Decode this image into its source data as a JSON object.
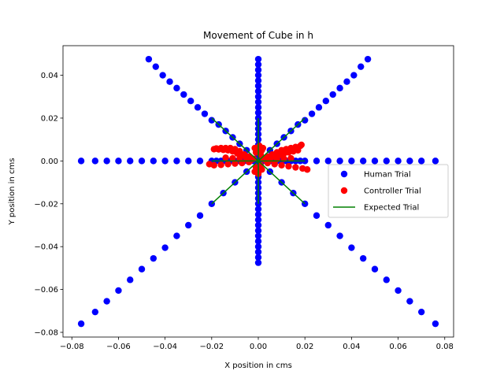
{
  "chart_data": {
    "type": "scatter",
    "title": "Movement of Cube in h",
    "xlabel": "X position in cms",
    "ylabel": "Y position in cms",
    "xlim": [
      -0.0838,
      0.0838
    ],
    "ylim": [
      -0.0822,
      0.0538
    ],
    "xticks": [
      -0.08,
      -0.06,
      -0.04,
      -0.02,
      0.0,
      0.02,
      0.04,
      0.06,
      0.08
    ],
    "xtick_labels": [
      "−0.08",
      "−0.06",
      "−0.04",
      "−0.02",
      "0.00",
      "0.02",
      "0.04",
      "0.06",
      "0.08"
    ],
    "yticks": [
      -0.08,
      -0.06,
      -0.04,
      -0.02,
      0.0,
      0.02,
      0.04
    ],
    "ytick_labels": [
      "−0.08",
      "−0.06",
      "−0.04",
      "−0.02",
      "0.00",
      "0.02",
      "0.04"
    ],
    "legend_position": "center-right",
    "colors": {
      "human": "#0000ff",
      "controller": "#ff0000",
      "expected": "#008000"
    },
    "series": [
      {
        "name": "Human Trial",
        "kind": "scatter",
        "color": "#0000ff",
        "points": [
          [
            0,
            0
          ],
          [
            0.002,
            0
          ],
          [
            0.004,
            0
          ],
          [
            0.006,
            0
          ],
          [
            0.008,
            0
          ],
          [
            0.01,
            0
          ],
          [
            0.012,
            0
          ],
          [
            0.014,
            0
          ],
          [
            0.016,
            0
          ],
          [
            0.018,
            0
          ],
          [
            0.02,
            0
          ],
          [
            0.025,
            0
          ],
          [
            0.03,
            0
          ],
          [
            0.035,
            0
          ],
          [
            0.04,
            0
          ],
          [
            0.045,
            0
          ],
          [
            0.05,
            0
          ],
          [
            0.055,
            0
          ],
          [
            0.06,
            0
          ],
          [
            0.065,
            0
          ],
          [
            0.07,
            0
          ],
          [
            0.076,
            0
          ],
          [
            -0.002,
            0
          ],
          [
            -0.004,
            0
          ],
          [
            -0.006,
            0
          ],
          [
            -0.008,
            0
          ],
          [
            -0.01,
            0
          ],
          [
            -0.012,
            0
          ],
          [
            -0.014,
            0
          ],
          [
            -0.016,
            0
          ],
          [
            -0.018,
            0
          ],
          [
            -0.02,
            0
          ],
          [
            -0.025,
            0
          ],
          [
            -0.03,
            0
          ],
          [
            -0.035,
            0
          ],
          [
            -0.04,
            0
          ],
          [
            -0.045,
            0
          ],
          [
            -0.05,
            0
          ],
          [
            -0.055,
            0
          ],
          [
            -0.06,
            0
          ],
          [
            -0.065,
            0
          ],
          [
            -0.07,
            0
          ],
          [
            -0.076,
            0
          ],
          [
            0,
            0.0025
          ],
          [
            0,
            0.005
          ],
          [
            0,
            0.0075
          ],
          [
            0,
            0.01
          ],
          [
            0,
            0.0125
          ],
          [
            0,
            0.015
          ],
          [
            0,
            0.0175
          ],
          [
            0,
            0.02
          ],
          [
            0,
            0.0225
          ],
          [
            0,
            0.025
          ],
          [
            0,
            0.0275
          ],
          [
            0,
            0.03
          ],
          [
            0,
            0.0325
          ],
          [
            0,
            0.035
          ],
          [
            0,
            0.0375
          ],
          [
            0,
            0.04
          ],
          [
            0,
            0.0425
          ],
          [
            0,
            0.045
          ],
          [
            0,
            0.0475
          ],
          [
            0,
            -0.0025
          ],
          [
            0,
            -0.005
          ],
          [
            0,
            -0.0075
          ],
          [
            0,
            -0.01
          ],
          [
            0,
            -0.0125
          ],
          [
            0,
            -0.015
          ],
          [
            0,
            -0.0175
          ],
          [
            0,
            -0.02
          ],
          [
            0,
            -0.0225
          ],
          [
            0,
            -0.025
          ],
          [
            0,
            -0.0275
          ],
          [
            0,
            -0.03
          ],
          [
            0,
            -0.0325
          ],
          [
            0,
            -0.035
          ],
          [
            0,
            -0.0375
          ],
          [
            0,
            -0.04
          ],
          [
            0,
            -0.0425
          ],
          [
            0,
            -0.045
          ],
          [
            0,
            -0.0475
          ],
          [
            0.005,
            0.005
          ],
          [
            0.008,
            0.008
          ],
          [
            0.011,
            0.011
          ],
          [
            0.014,
            0.014
          ],
          [
            0.017,
            0.017
          ],
          [
            0.02,
            0.019
          ],
          [
            0.023,
            0.022
          ],
          [
            0.026,
            0.025
          ],
          [
            0.029,
            0.028
          ],
          [
            0.032,
            0.031
          ],
          [
            0.035,
            0.034
          ],
          [
            0.038,
            0.037
          ],
          [
            0.041,
            0.04
          ],
          [
            0.044,
            0.044
          ],
          [
            0.047,
            0.0475
          ],
          [
            -0.005,
            0.005
          ],
          [
            -0.008,
            0.008
          ],
          [
            -0.011,
            0.011
          ],
          [
            -0.014,
            0.014
          ],
          [
            -0.017,
            0.017
          ],
          [
            -0.02,
            0.019
          ],
          [
            -0.023,
            0.022
          ],
          [
            -0.026,
            0.025
          ],
          [
            -0.029,
            0.028
          ],
          [
            -0.032,
            0.031
          ],
          [
            -0.035,
            0.034
          ],
          [
            -0.038,
            0.037
          ],
          [
            -0.041,
            0.04
          ],
          [
            -0.044,
            0.044
          ],
          [
            -0.047,
            0.0475
          ],
          [
            0.005,
            -0.005
          ],
          [
            0.01,
            -0.01
          ],
          [
            0.015,
            -0.015
          ],
          [
            0.02,
            -0.02
          ],
          [
            0.025,
            -0.0255
          ],
          [
            0.03,
            -0.03
          ],
          [
            0.035,
            -0.035
          ],
          [
            0.04,
            -0.0405
          ],
          [
            0.045,
            -0.0455
          ],
          [
            0.05,
            -0.0505
          ],
          [
            0.055,
            -0.0555
          ],
          [
            0.06,
            -0.0605
          ],
          [
            0.065,
            -0.0655
          ],
          [
            0.07,
            -0.0705
          ],
          [
            0.076,
            -0.076
          ],
          [
            -0.005,
            -0.005
          ],
          [
            -0.01,
            -0.01
          ],
          [
            -0.015,
            -0.015
          ],
          [
            -0.02,
            -0.02
          ],
          [
            -0.025,
            -0.0255
          ],
          [
            -0.03,
            -0.03
          ],
          [
            -0.035,
            -0.035
          ],
          [
            -0.04,
            -0.0405
          ],
          [
            -0.045,
            -0.0455
          ],
          [
            -0.05,
            -0.0505
          ],
          [
            -0.055,
            -0.0555
          ],
          [
            -0.06,
            -0.0605
          ],
          [
            -0.065,
            -0.0655
          ],
          [
            -0.07,
            -0.0705
          ],
          [
            -0.076,
            -0.076
          ]
        ]
      },
      {
        "name": "Controller Trial",
        "kind": "scatter",
        "color": "#ff0000",
        "points": [
          [
            0.002,
            0.001
          ],
          [
            0.004,
            0.002
          ],
          [
            0.006,
            0.003
          ],
          [
            0.008,
            0.004
          ],
          [
            0.01,
            0.005
          ],
          [
            0.012,
            0.0055
          ],
          [
            0.014,
            0.006
          ],
          [
            0.016,
            0.0065
          ],
          [
            0.018,
            0.007
          ],
          [
            0.0185,
            0.0075
          ],
          [
            0.003,
            0.0005
          ],
          [
            0.005,
            0.0012
          ],
          [
            0.007,
            0.002
          ],
          [
            0.009,
            0.0028
          ],
          [
            0.011,
            0.0035
          ],
          [
            0.013,
            0.004
          ],
          [
            0.015,
            0.0045
          ],
          [
            0.017,
            0.005
          ],
          [
            -0.002,
            0.001
          ],
          [
            -0.004,
            0.002
          ],
          [
            -0.006,
            0.003
          ],
          [
            -0.008,
            0.0045
          ],
          [
            -0.01,
            0.0055
          ],
          [
            -0.012,
            0.006
          ],
          [
            -0.014,
            0.006
          ],
          [
            -0.016,
            0.006
          ],
          [
            -0.018,
            0.0058
          ],
          [
            -0.019,
            0.0055
          ],
          [
            -0.003,
            0.0005
          ],
          [
            -0.005,
            0.0012
          ],
          [
            -0.007,
            0.0025
          ],
          [
            -0.009,
            0.0035
          ],
          [
            -0.011,
            0.0045
          ],
          [
            -0.013,
            0.005
          ],
          [
            -0.015,
            0.0052
          ],
          [
            -0.017,
            0.0054
          ],
          [
            0.004,
            -0.001
          ],
          [
            0.007,
            -0.0015
          ],
          [
            0.01,
            -0.002
          ],
          [
            0.013,
            -0.0025
          ],
          [
            0.016,
            -0.003
          ],
          [
            0.019,
            -0.0035
          ],
          [
            0.021,
            -0.004
          ],
          [
            -0.004,
            -0.0005
          ],
          [
            -0.007,
            -0.001
          ],
          [
            -0.01,
            -0.0012
          ],
          [
            -0.013,
            -0.0015
          ],
          [
            -0.016,
            -0.0018
          ],
          [
            -0.019,
            -0.002
          ],
          [
            -0.021,
            -0.0015
          ],
          [
            0.001,
            0.003
          ],
          [
            0.0015,
            0.005
          ],
          [
            0.002,
            0.006
          ],
          [
            -0.001,
            0.004
          ],
          [
            -0.0015,
            0.006
          ],
          [
            0.0005,
            0.007
          ],
          [
            0.001,
            -0.002
          ],
          [
            -0.001,
            -0.003
          ],
          [
            0.0015,
            -0.004
          ],
          [
            -0.0015,
            -0.005
          ],
          [
            0,
            -0.006
          ],
          [
            0.005,
            0.0005
          ],
          [
            0.008,
            0.0008
          ],
          [
            0.011,
            0.001
          ],
          [
            0.014,
            0.0012
          ],
          [
            -0.005,
            0.0008
          ],
          [
            -0.008,
            0.001
          ],
          [
            -0.011,
            0.0012
          ],
          [
            -0.014,
            0.0015
          ]
        ]
      },
      {
        "name": "Expected Trial",
        "kind": "line",
        "color": "#008000",
        "segments": [
          [
            [
              -0.05,
              0
            ],
            [
              0.05,
              0
            ]
          ],
          [
            [
              0,
              -0.045
            ],
            [
              0,
              0.045
            ]
          ],
          [
            [
              -0.045,
              0.045
            ],
            [
              0.045,
              -0.045
            ]
          ],
          [
            [
              -0.045,
              -0.045
            ],
            [
              0.045,
              0.045
            ]
          ]
        ],
        "segment_limits": {
          "horizontal": 0.02,
          "vertical": 0.02,
          "diagonal": 0.02
        }
      }
    ]
  }
}
